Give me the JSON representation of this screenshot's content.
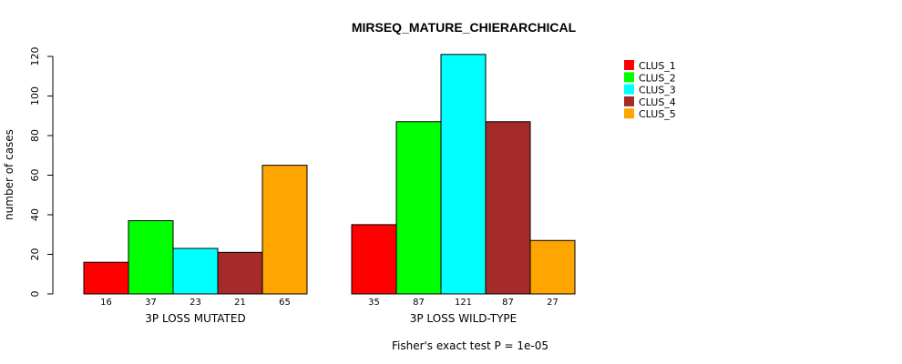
{
  "chart_data": {
    "type": "bar",
    "title": "MIRSEQ_MATURE_CHIERARCHICAL",
    "ylabel": "number of cases",
    "ylim": [
      0,
      120
    ],
    "yticks": [
      0,
      20,
      40,
      60,
      80,
      100,
      120
    ],
    "groups": [
      {
        "label": "3P LOSS MUTATED",
        "values": [
          16,
          37,
          23,
          21,
          65
        ]
      },
      {
        "label": "3P LOSS WILD-TYPE",
        "values": [
          35,
          87,
          121,
          87,
          27
        ]
      }
    ],
    "series": [
      {
        "name": "CLUS_1",
        "color": "#ff0000"
      },
      {
        "name": "CLUS_2",
        "color": "#00ff00"
      },
      {
        "name": "CLUS_3",
        "color": "#00ffff"
      },
      {
        "name": "CLUS_4",
        "color": "#a52a2a"
      },
      {
        "name": "CLUS_5",
        "color": "#ffa500"
      }
    ],
    "legend_position": "top-right",
    "footnote": "Fisher's exact test P = 1e-05"
  }
}
